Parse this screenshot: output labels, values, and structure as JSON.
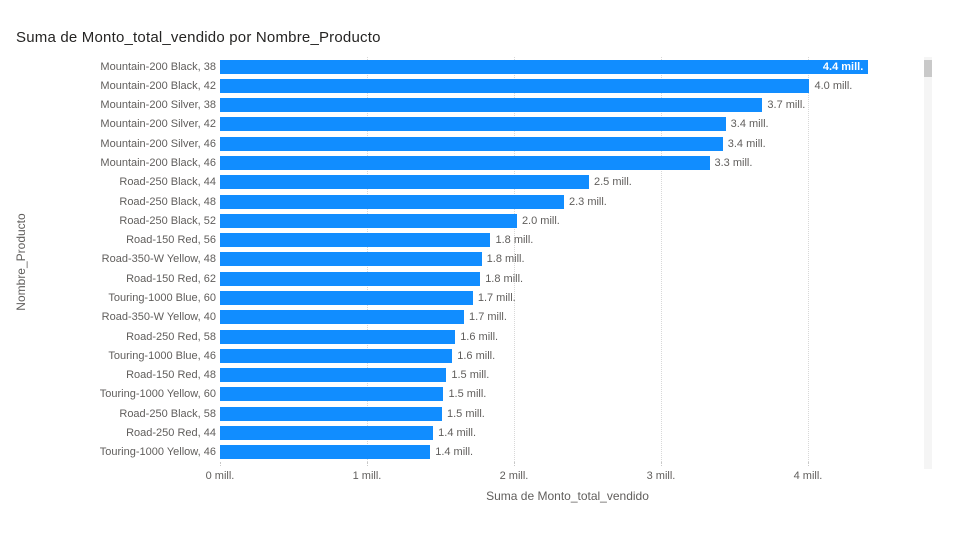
{
  "colors": {
    "bar": "#118DFF",
    "title_text": "#252423",
    "label_text": "#605E5C",
    "inside_value_label": "#FFFFFF",
    "gridline": "#D8D8D8",
    "scroll_track": "#F5F5F5",
    "scroll_thumb": "#C9C9C9",
    "background": "#FFFFFF"
  },
  "scrollbar": {
    "visible": true,
    "thumb_position": "top"
  },
  "chart_data": {
    "type": "bar",
    "orientation": "horizontal",
    "title": "Suma de Monto_total_vendido por Nombre_Producto",
    "xlabel": "Suma de Monto_total_vendido",
    "ylabel": "Nombre_Producto",
    "x_unit": "mill.",
    "xlim": [
      0,
      4.73
    ],
    "grid": "vertical-dotted",
    "legend": "none",
    "tick_labels": [
      "0 mill.",
      "1 mill.",
      "2 mill.",
      "3 mill.",
      "4 mill."
    ],
    "tick_values": [
      0,
      1,
      2,
      3,
      4
    ],
    "categories": [
      "Mountain-200 Black, 38",
      "Mountain-200 Black, 42",
      "Mountain-200 Silver, 38",
      "Mountain-200 Silver, 42",
      "Mountain-200 Silver, 46",
      "Mountain-200 Black, 46",
      "Road-250 Black, 44",
      "Road-250 Black, 48",
      "Road-250 Black, 52",
      "Road-150 Red, 56",
      "Road-350-W Yellow, 48",
      "Road-150 Red, 62",
      "Touring-1000 Blue, 60",
      "Road-350-W Yellow, 40",
      "Road-250 Red, 58",
      "Touring-1000 Blue, 46",
      "Road-150 Red, 48",
      "Touring-1000 Yellow, 60",
      "Road-250 Black, 58",
      "Road-250 Red, 44",
      "Touring-1000 Yellow, 46"
    ],
    "values": [
      4.41,
      4.01,
      3.69,
      3.44,
      3.42,
      3.33,
      2.51,
      2.34,
      2.02,
      1.84,
      1.78,
      1.77,
      1.72,
      1.66,
      1.6,
      1.58,
      1.54,
      1.52,
      1.51,
      1.45,
      1.43
    ],
    "value_labels": [
      "4.4 mill.",
      "4.0 mill.",
      "3.7 mill.",
      "3.4 mill.",
      "3.4 mill.",
      "3.3 mill.",
      "2.5 mill.",
      "2.3 mill.",
      "2.0 mill.",
      "1.8 mill.",
      "1.8 mill.",
      "1.8 mill.",
      "1.7 mill.",
      "1.7 mill.",
      "1.6 mill.",
      "1.6 mill.",
      "1.5 mill.",
      "1.5 mill.",
      "1.5 mill.",
      "1.4 mill.",
      "1.4 mill."
    ],
    "first_label_inside_bar": true
  }
}
